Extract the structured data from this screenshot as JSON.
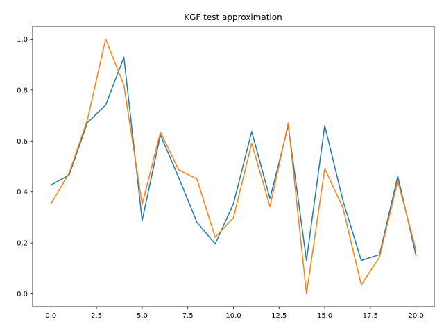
{
  "chart_data": {
    "type": "line",
    "title": "KGF test approximation",
    "xlabel": "",
    "ylabel": "",
    "xlim": [
      -1.0,
      21.0
    ],
    "ylim": [
      -0.05,
      1.05
    ],
    "grid": false,
    "legend": "none",
    "x": [
      0,
      1,
      2,
      3,
      4,
      5,
      6,
      7,
      8,
      9,
      10,
      11,
      12,
      13,
      14,
      15,
      16,
      17,
      18,
      19,
      20
    ],
    "x_ticks": [
      0.0,
      2.5,
      5.0,
      7.5,
      10.0,
      12.5,
      15.0,
      17.5,
      20.0
    ],
    "x_tick_labels": [
      "0.0",
      "2.5",
      "5.0",
      "7.5",
      "10.0",
      "12.5",
      "15.0",
      "17.5",
      "20.0"
    ],
    "y_ticks": [
      0.0,
      0.2,
      0.4,
      0.6,
      0.8,
      1.0
    ],
    "y_tick_labels": [
      "0.0",
      "0.2",
      "0.4",
      "0.6",
      "0.8",
      "1.0"
    ],
    "series": [
      {
        "color": "#1f77b4",
        "values": [
          0.427,
          0.467,
          0.672,
          0.741,
          0.929,
          0.288,
          0.624,
          0.457,
          0.281,
          0.196,
          0.354,
          0.637,
          0.374,
          0.66,
          0.131,
          0.661,
          0.365,
          0.131,
          0.154,
          0.462,
          0.151
        ]
      },
      {
        "color": "#ff7f0e",
        "values": [
          0.353,
          0.474,
          0.683,
          1.0,
          0.819,
          0.351,
          0.635,
          0.487,
          0.451,
          0.222,
          0.299,
          0.591,
          0.342,
          0.671,
          0.0,
          0.492,
          0.337,
          0.035,
          0.145,
          0.442,
          0.172
        ]
      }
    ]
  }
}
